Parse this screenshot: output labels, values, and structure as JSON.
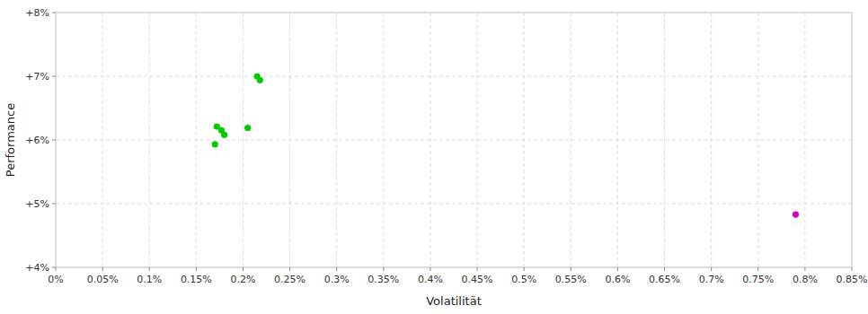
{
  "chart_data": {
    "type": "scatter",
    "x_label": "Volatilität",
    "y_label": "Performance",
    "series": [
      {
        "color": "#00cc00",
        "x": [
          0.00215,
          0.00218,
          0.00172,
          0.00177,
          0.0018,
          0.00205,
          0.0017
        ],
        "values": [
          0.07,
          0.0694,
          0.0621,
          0.0615,
          0.0608,
          0.0619,
          0.0593
        ]
      },
      {
        "color": "#cc00cc",
        "x": [
          0.0079
        ],
        "values": [
          0.0483
        ]
      }
    ],
    "xlim": [
      0.0,
      0.0085
    ],
    "ylim": [
      0.04,
      0.08
    ],
    "xticks": [
      {
        "value": 0.0,
        "label": "0%"
      },
      {
        "value": 0.0005,
        "label": "0.05%"
      },
      {
        "value": 0.001,
        "label": "0.1%"
      },
      {
        "value": 0.0015,
        "label": "0.15%"
      },
      {
        "value": 0.002,
        "label": "0.2%"
      },
      {
        "value": 0.0025,
        "label": "0.25%"
      },
      {
        "value": 0.003,
        "label": "0.3%"
      },
      {
        "value": 0.0035,
        "label": "0.35%"
      },
      {
        "value": 0.004,
        "label": "0.4%"
      },
      {
        "value": 0.0045,
        "label": "0.45%"
      },
      {
        "value": 0.005,
        "label": "0.5%"
      },
      {
        "value": 0.0055,
        "label": "0.55%"
      },
      {
        "value": 0.006,
        "label": "0.6%"
      },
      {
        "value": 0.0065,
        "label": "0.65%"
      },
      {
        "value": 0.007,
        "label": "0.7%"
      },
      {
        "value": 0.0075,
        "label": "0.75%"
      },
      {
        "value": 0.008,
        "label": "0.8%"
      },
      {
        "value": 0.0085,
        "label": "0.85%"
      }
    ],
    "yticks": [
      {
        "value": 0.04,
        "label": "+4%"
      },
      {
        "value": 0.05,
        "label": "+5%"
      },
      {
        "value": 0.06,
        "label": "+6%"
      },
      {
        "value": 0.07,
        "label": "+7%"
      },
      {
        "value": 0.08,
        "label": "+8%"
      }
    ],
    "grid": true
  }
}
